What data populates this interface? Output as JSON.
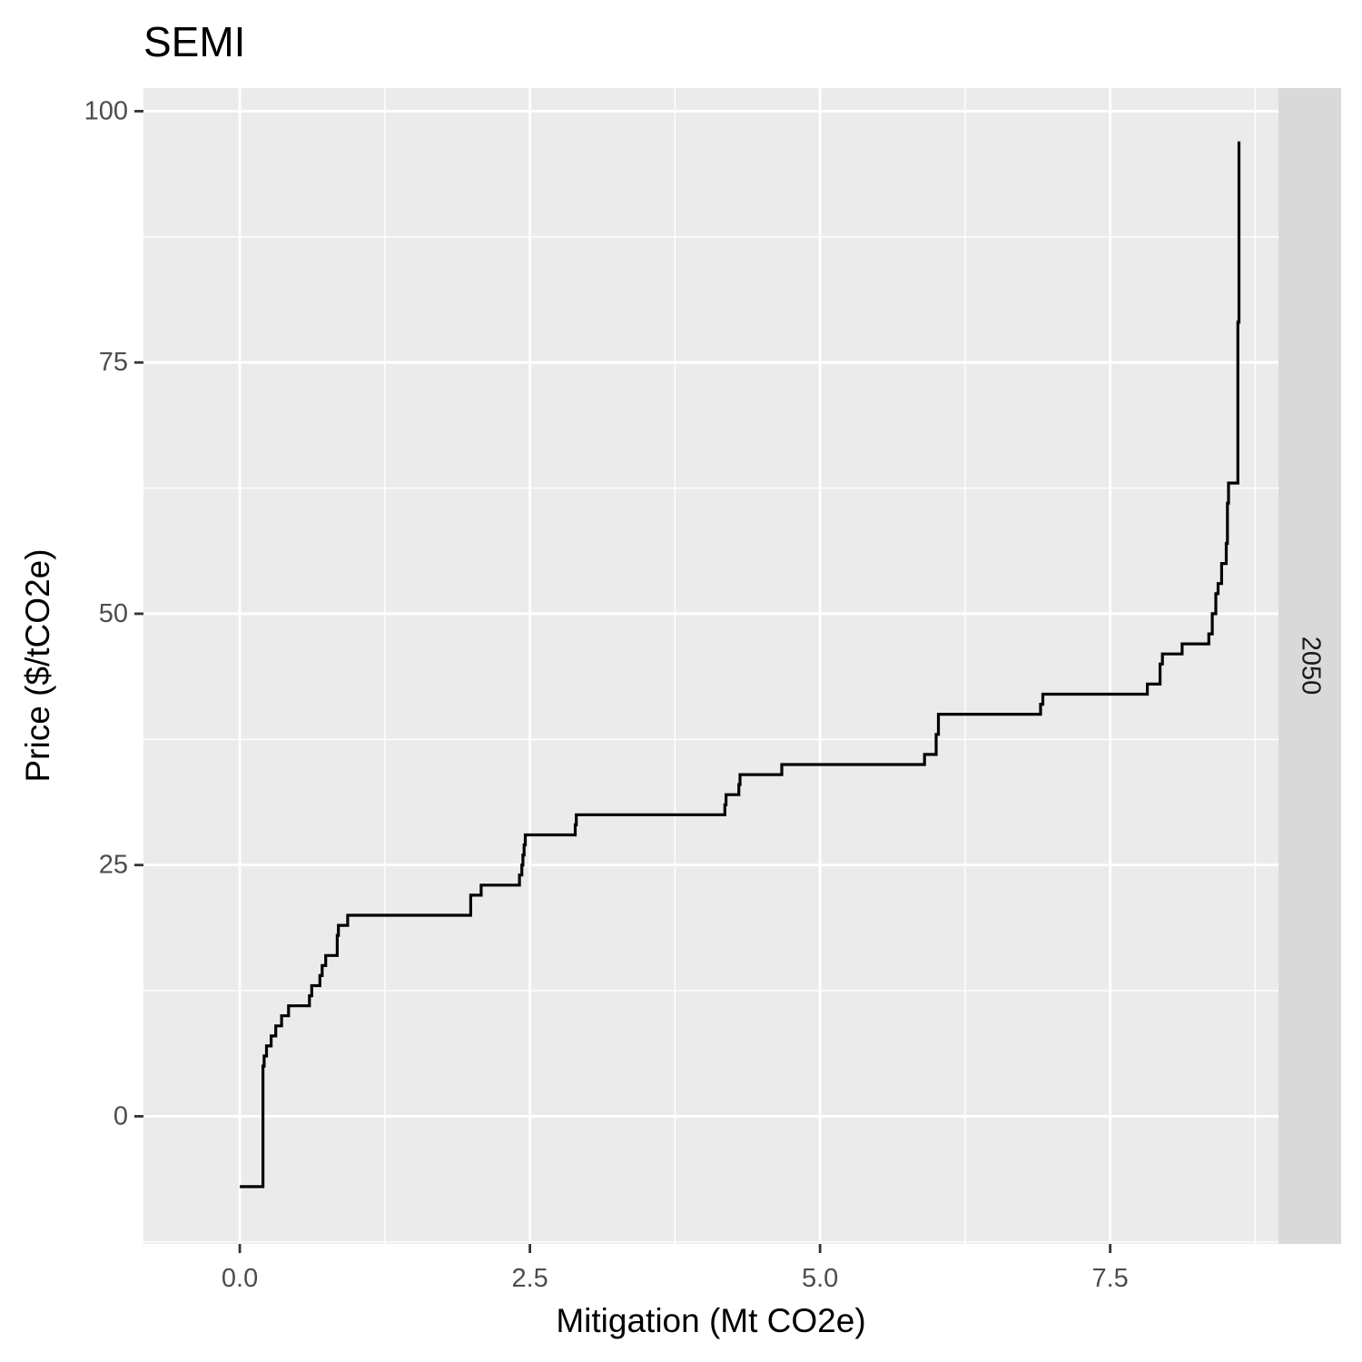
{
  "chart_data": {
    "type": "line",
    "title": "SEMI",
    "xlabel": "Mitigation (Mt CO2e)",
    "ylabel": "Price ($/tCO2e)",
    "facet_label": "2050",
    "xlim": [
      -0.83,
      8.95
    ],
    "ylim": [
      -12.7,
      102.3
    ],
    "x_ticks": [
      0.0,
      2.5,
      5.0,
      7.5
    ],
    "x_tick_labels": [
      "0.0",
      "2.5",
      "5.0",
      "7.5"
    ],
    "y_ticks": [
      0,
      25,
      50,
      75,
      100
    ],
    "y_tick_labels": [
      "0",
      "25",
      "50",
      "75",
      "100"
    ],
    "grid": true,
    "colors": {
      "panel": "#ebebeb",
      "grid": "#ffffff",
      "line": "#000000",
      "strip": "#d9d9d9"
    },
    "series": [
      {
        "step": "hv",
        "x": [
          0.0,
          0.19,
          0.2,
          0.21,
          0.23,
          0.27,
          0.31,
          0.36,
          0.42,
          0.6,
          0.62,
          0.69,
          0.71,
          0.74,
          0.84,
          0.85,
          0.93,
          1.99,
          2.03,
          2.08,
          2.41,
          2.43,
          2.44,
          2.45,
          2.46,
          2.89,
          2.9,
          4.18,
          4.19,
          4.3,
          4.31,
          4.66,
          4.67,
          5.9,
          5.91,
          6.0,
          6.02,
          6.03,
          6.9,
          6.92,
          6.94,
          7.82,
          7.84,
          7.93,
          7.95,
          8.1,
          8.12,
          8.35,
          8.36,
          8.38,
          8.39,
          8.41,
          8.43,
          8.46,
          8.5,
          8.51,
          8.52,
          8.6,
          8.61
        ],
        "y": [
          -7,
          -7,
          5,
          6,
          7,
          8,
          9,
          10,
          11,
          12,
          13,
          14,
          15,
          16,
          18,
          19,
          20,
          22,
          22,
          23,
          24,
          25,
          26,
          27,
          28,
          29,
          30,
          31,
          32,
          33,
          34,
          34,
          35,
          36,
          36,
          38,
          40,
          40,
          41,
          42,
          42,
          43,
          43,
          45,
          46,
          46,
          47,
          48,
          48,
          50,
          50,
          52,
          53,
          55,
          57,
          61,
          63,
          79,
          97
        ]
      }
    ]
  }
}
